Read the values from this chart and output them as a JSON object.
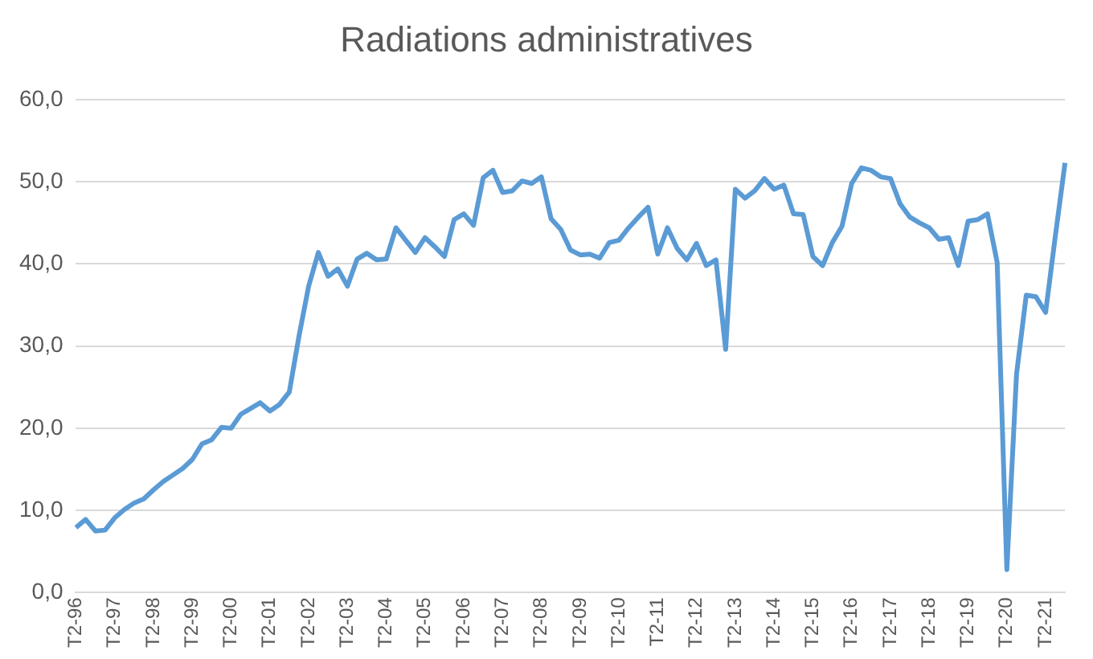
{
  "chart_data": {
    "type": "line",
    "title": "Radiations administratives",
    "categories": [
      "T2-96",
      null,
      null,
      null,
      "T2-97",
      null,
      null,
      null,
      "T2-98",
      null,
      null,
      null,
      "T2-99",
      null,
      null,
      null,
      "T2-00",
      null,
      null,
      null,
      "T2-01",
      null,
      null,
      null,
      "T2-02",
      null,
      null,
      null,
      "T2-03",
      null,
      null,
      null,
      "T2-04",
      null,
      null,
      null,
      "T2-05",
      null,
      null,
      null,
      "T2-06",
      null,
      null,
      null,
      "T2-07",
      null,
      null,
      null,
      "T2-08",
      null,
      null,
      null,
      "T2-09",
      null,
      null,
      null,
      "T2-10",
      null,
      null,
      null,
      "T2-11",
      null,
      null,
      null,
      "T2-12",
      null,
      null,
      null,
      "T2-13",
      null,
      null,
      null,
      "T2-14",
      null,
      null,
      null,
      "T2-15",
      null,
      null,
      null,
      "T2-16",
      null,
      null,
      null,
      "T2-17",
      null,
      null,
      null,
      "T2-18",
      null,
      null,
      null,
      "T2-19",
      null,
      null,
      null,
      "T2-20",
      null,
      null,
      null,
      "T2-21",
      null,
      null
    ],
    "series": [
      {
        "color": "#5b9bd5",
        "values": [
          7.9,
          8.9,
          7.5,
          7.6,
          9.1,
          10.1,
          10.9,
          11.4,
          12.5,
          13.5,
          14.3,
          15.1,
          16.2,
          18.1,
          18.6,
          20.1,
          20.0,
          21.7,
          22.4,
          23.1,
          22.1,
          22.9,
          24.4,
          31.2,
          37.3,
          41.4,
          38.5,
          39.4,
          37.3,
          40.6,
          41.3,
          40.5,
          40.6,
          44.4,
          42.9,
          41.4,
          43.2,
          42.1,
          40.9,
          45.4,
          46.1,
          44.7,
          50.5,
          51.4,
          48.7,
          48.9,
          50.1,
          49.8,
          50.6,
          45.5,
          44.2,
          41.7,
          41.1,
          41.2,
          40.7,
          42.6,
          42.9,
          44.4,
          45.7,
          46.9,
          41.2,
          44.4,
          41.9,
          40.5,
          42.5,
          39.8,
          40.5,
          29.6,
          49.1,
          48.0,
          48.9,
          50.4,
          49.1,
          49.6,
          46.1,
          46.0,
          40.9,
          39.8,
          42.6,
          44.6,
          49.8,
          51.7,
          51.4,
          50.6,
          50.4,
          47.3,
          45.7,
          45.0,
          44.4,
          43.0,
          43.2,
          39.8,
          45.2,
          45.4,
          46.1,
          40.2,
          2.8,
          26.6,
          36.2,
          36.0,
          34.1,
          43.4,
          52.3
        ]
      }
    ],
    "ylim": [
      0,
      60
    ],
    "yticks": [
      {
        "value": 0,
        "label": "0,0"
      },
      {
        "value": 10,
        "label": "10,0"
      },
      {
        "value": 20,
        "label": "20,0"
      },
      {
        "value": 30,
        "label": "30,0"
      },
      {
        "value": 40,
        "label": "40,0"
      },
      {
        "value": 50,
        "label": "50,0"
      },
      {
        "value": 60,
        "label": "60,0"
      }
    ],
    "grid": "y",
    "legend": false,
    "marker": "none",
    "line_style": "solid"
  }
}
